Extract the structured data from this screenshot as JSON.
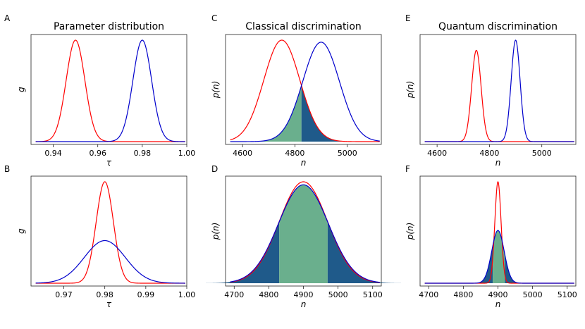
{
  "colors": {
    "red": "#ff0000",
    "blue": "#0000cc",
    "dark_fill": "#1f5a8a",
    "light_fill": "#6aaf8d"
  },
  "chart_data": [
    {
      "id": "A",
      "panel_label": "A",
      "type": "line",
      "title": "Parameter distribution",
      "xlabel": "τ",
      "ylabel": "g",
      "xlim": [
        0.93,
        1.0
      ],
      "xticks": [
        0.94,
        0.96,
        0.98,
        1.0
      ],
      "xtick_labels": [
        "0.94",
        "0.96",
        "0.98",
        "1.00"
      ],
      "series": [
        {
          "name": "red",
          "color": "#ff0000",
          "mean": 0.95,
          "sd": 0.0042,
          "amp": 1.0
        },
        {
          "name": "blue",
          "color": "#0000cc",
          "mean": 0.98,
          "sd": 0.0042,
          "amp": 1.0
        }
      ]
    },
    {
      "id": "C",
      "panel_label": "C",
      "type": "line",
      "title": "Classical discrimination",
      "xlabel": "n",
      "ylabel": "p(n)",
      "xlim": [
        4535,
        5130
      ],
      "xticks": [
        4600,
        4800,
        5000
      ],
      "xtick_labels": [
        "4600",
        "4800",
        "5000"
      ],
      "series": [
        {
          "name": "red",
          "color": "#ff0000",
          "mean": 4750,
          "sd": 69,
          "amp": 1.0
        },
        {
          "name": "blue",
          "color": "#0000cc",
          "mean": 4900,
          "sd": 70,
          "amp": 0.98
        }
      ],
      "fill": {
        "type": "overlap",
        "threshold": 4825
      }
    },
    {
      "id": "E",
      "panel_label": "E",
      "type": "line",
      "title": "Quantum discrimination",
      "xlabel": "n",
      "ylabel": "p(n)",
      "xlim": [
        4535,
        5130
      ],
      "xticks": [
        4600,
        4800,
        5000
      ],
      "xtick_labels": [
        "4600",
        "4800",
        "5000"
      ],
      "series": [
        {
          "name": "red",
          "color": "#ff0000",
          "mean": 4750,
          "sd": 18,
          "amp": 0.9
        },
        {
          "name": "blue",
          "color": "#0000cc",
          "mean": 4900,
          "sd": 17,
          "amp": 1.0
        }
      ]
    },
    {
      "id": "B",
      "panel_label": "B",
      "type": "line",
      "title": "",
      "xlabel": "τ",
      "ylabel": "g",
      "xlim": [
        0.962,
        1.0
      ],
      "xticks": [
        0.97,
        0.98,
        0.99,
        1.0
      ],
      "xtick_labels": [
        "0.97",
        "0.98",
        "0.99",
        "1.00"
      ],
      "series": [
        {
          "name": "red",
          "color": "#ff0000",
          "mean": 0.98,
          "sd": 0.0021,
          "amp": 1.0
        },
        {
          "name": "blue",
          "color": "#0000cc",
          "mean": 0.98,
          "sd": 0.005,
          "amp": 0.42
        }
      ]
    },
    {
      "id": "D",
      "panel_label": "D",
      "type": "line",
      "title": "",
      "xlabel": "n",
      "ylabel": "p(n)",
      "xlim": [
        4675,
        5125
      ],
      "xticks": [
        4700,
        4800,
        4900,
        5000,
        5100
      ],
      "xtick_labels": [
        "4700",
        "4800",
        "4900",
        "5000",
        "5100"
      ],
      "series": [
        {
          "name": "red",
          "color": "#ff0000",
          "mean": 4900,
          "sd": 70,
          "amp": 1.0
        },
        {
          "name": "blue",
          "color": "#0000cc",
          "mean": 4900,
          "sd": 72,
          "amp": 0.97
        }
      ],
      "fill": {
        "type": "band",
        "series": 1,
        "lo": 4830,
        "hi": 4970
      }
    },
    {
      "id": "F",
      "panel_label": "F",
      "type": "line",
      "title": "",
      "xlabel": "n",
      "ylabel": "p(n)",
      "xlim": [
        4675,
        5125
      ],
      "xticks": [
        4700,
        4800,
        4900,
        5000,
        5100
      ],
      "xtick_labels": [
        "4700",
        "4800",
        "4900",
        "5000",
        "5100"
      ],
      "series": [
        {
          "name": "red",
          "color": "#ff0000",
          "mean": 4900,
          "sd": 9,
          "amp": 1.0
        },
        {
          "name": "blue",
          "color": "#0000cc",
          "mean": 4900,
          "sd": 18,
          "amp": 0.52
        }
      ],
      "fill": {
        "type": "band",
        "series": 1,
        "lo": 4885,
        "hi": 4920
      }
    }
  ]
}
